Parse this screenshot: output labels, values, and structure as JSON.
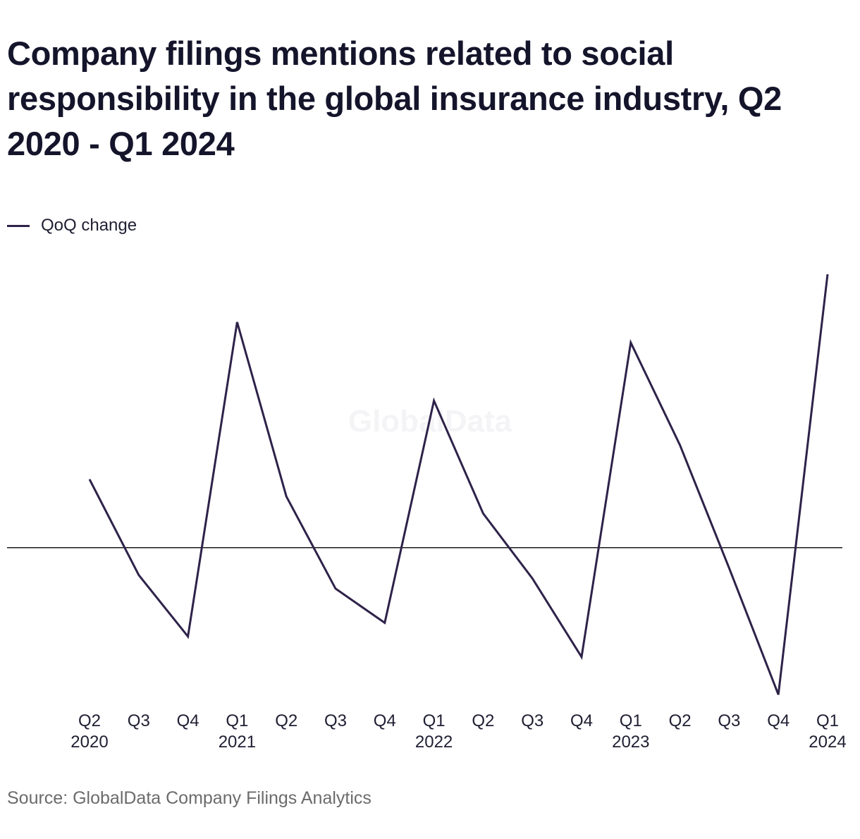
{
  "chart_data": {
    "type": "line",
    "title": "Company filings mentions related to social responsibility in the global insurance industry, Q2 2020 - Q1 2024",
    "xlabel": "",
    "ylabel": "",
    "ylim": [
      -22,
      40
    ],
    "baseline": 0,
    "categories": [
      {
        "quarter": "Q2",
        "year": "2020"
      },
      {
        "quarter": "Q3",
        "year": ""
      },
      {
        "quarter": "Q4",
        "year": ""
      },
      {
        "quarter": "Q1",
        "year": "2021"
      },
      {
        "quarter": "Q2",
        "year": ""
      },
      {
        "quarter": "Q3",
        "year": ""
      },
      {
        "quarter": "Q4",
        "year": ""
      },
      {
        "quarter": "Q1",
        "year": "2022"
      },
      {
        "quarter": "Q2",
        "year": ""
      },
      {
        "quarter": "Q3",
        "year": ""
      },
      {
        "quarter": "Q4",
        "year": ""
      },
      {
        "quarter": "Q1",
        "year": "2023"
      },
      {
        "quarter": "Q2",
        "year": ""
      },
      {
        "quarter": "Q3",
        "year": ""
      },
      {
        "quarter": "Q4",
        "year": ""
      },
      {
        "quarter": "Q1",
        "year": "2024"
      }
    ],
    "series": [
      {
        "name": "QoQ change",
        "color": "#2e2249",
        "values": [
          10,
          -4,
          -13,
          33,
          7.5,
          -6,
          -11,
          21.5,
          5,
          -4.5,
          -16,
          30,
          15,
          -3,
          -21.5,
          40
        ]
      }
    ],
    "legend": "top-left",
    "grid": false
  },
  "legend_label": "QoQ change",
  "watermark": "GlobalData",
  "source": "Source: GlobalData Company Filings Analytics"
}
